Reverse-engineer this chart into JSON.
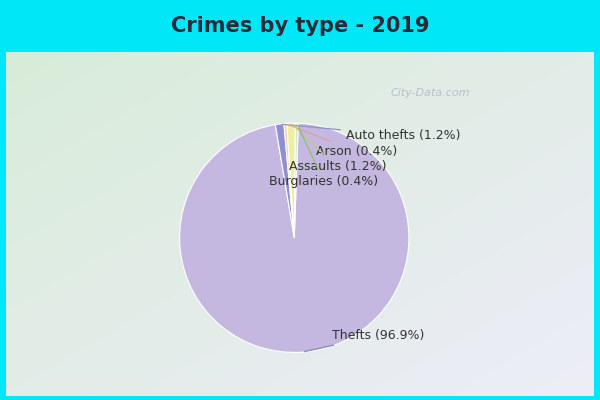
{
  "title": "Crimes by type - 2019",
  "slices": [
    {
      "label": "Thefts",
      "pct": 96.9,
      "color": "#c4b8e0"
    },
    {
      "label": "Auto thefts",
      "pct": 1.2,
      "color": "#9090cc"
    },
    {
      "label": "Arson",
      "pct": 0.4,
      "color": "#f0c8b8"
    },
    {
      "label": "Assaults",
      "pct": 1.2,
      "color": "#eeeea0"
    },
    {
      "label": "Burglaries",
      "pct": 0.4,
      "color": "#d0e8c0"
    }
  ],
  "bg_outer": "#00e8f8",
  "title_fontsize": 15,
  "title_color": "#2a2a3a",
  "label_fontsize": 9,
  "watermark": "City-Data.com",
  "label_color": "#333333",
  "line_colors": {
    "Thefts": "#8888bb",
    "Auto thefts": "#9090cc",
    "Arson": "#e0a0a0",
    "Assaults": "#c8c880",
    "Burglaries": "#90c070"
  }
}
